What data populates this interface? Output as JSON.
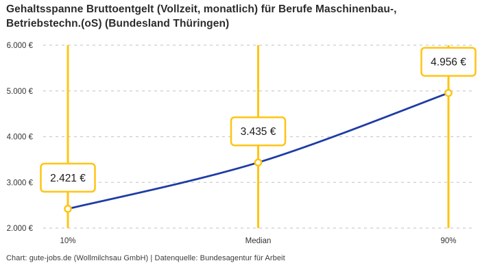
{
  "header": {
    "title_line1": "Gehaltsspanne Bruttoentgelt (Vollzeit, monatlich) für Berufe Maschinenbau-,",
    "title_line2": "Betriebstechn.(oS) (Bundesland Thüringen)"
  },
  "chart_data": {
    "type": "line",
    "title": "Gehaltsspanne Bruttoentgelt (Vollzeit, monatlich) für Berufe Maschinenbau-, Betriebstechn.(oS) (Bundesland Thüringen)",
    "categories": [
      "10%",
      "Median",
      "90%"
    ],
    "series": [
      {
        "name": "Bruttoentgelt",
        "values": [
          2421,
          3435,
          4956
        ],
        "value_labels": [
          "2.421 €",
          "3.435 €",
          "4.956 €"
        ]
      }
    ],
    "ylim": [
      2000,
      6000
    ],
    "ytick_values": [
      2000,
      3000,
      4000,
      5000,
      6000
    ],
    "ytick_labels": [
      "2.000 €",
      "3.000 €",
      "4.000 €",
      "5.000 €",
      "6.000 €"
    ],
    "grid": "horizontal-dashed",
    "legend": "none",
    "marker": "open-circle",
    "annotation_style": "boxed value labels above each data point",
    "vertical_guides": "yellow line at each percentile"
  },
  "footer": {
    "credit": "Chart: gute-jobs.de (Wollmilchsau GmbH) | Datenquelle: Bundesagentur für Arbeit"
  },
  "colors": {
    "accent_yellow": "#FFC413",
    "curve_blue": "#1E3CA5",
    "grid": "#CCCCCC",
    "title_text": "#2B2B2B",
    "axis_text": "#333333",
    "label_text": "#1A1A1A",
    "background": "#FFFFFF"
  }
}
